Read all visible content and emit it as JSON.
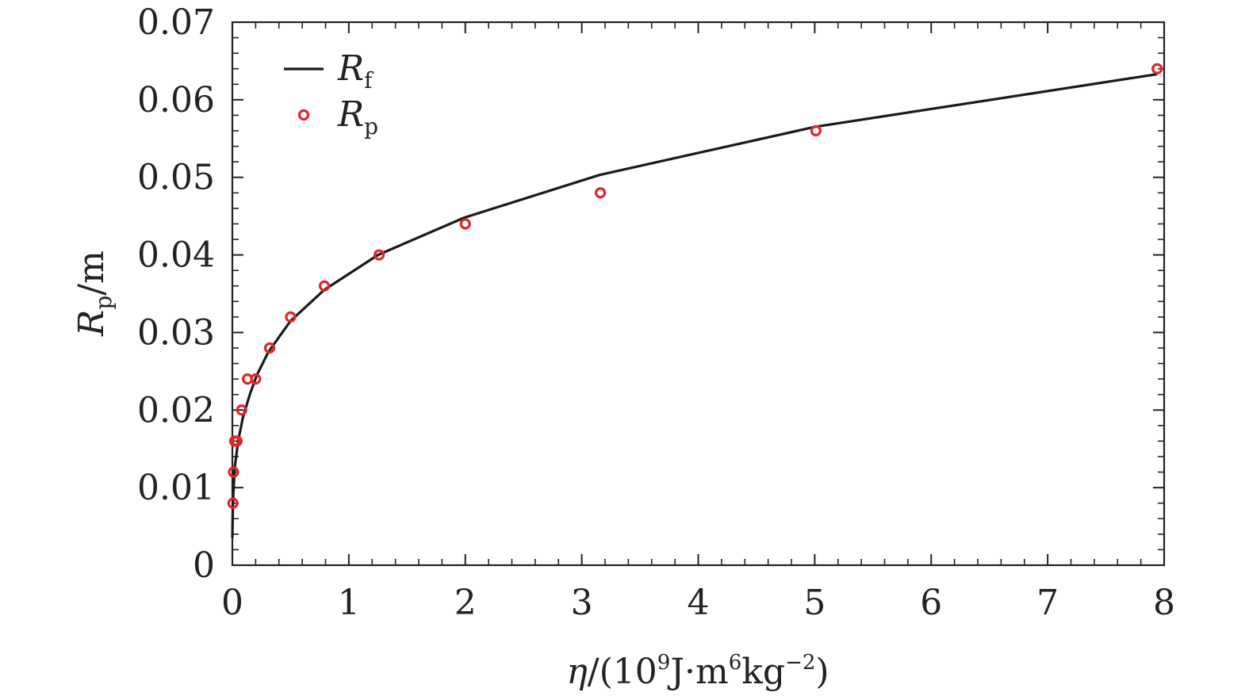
{
  "chart_data": {
    "type": "scatter",
    "xlim": [
      0,
      8
    ],
    "ylim": [
      0,
      0.07
    ],
    "x_ticks": [
      0,
      1,
      2,
      3,
      4,
      5,
      6,
      7,
      8
    ],
    "x_tick_labels": [
      "0",
      "1",
      "2",
      "3",
      "4",
      "5",
      "6",
      "7",
      "8"
    ],
    "x_minor_step": 0.2,
    "y_ticks": [
      0,
      0.01,
      0.02,
      0.03,
      0.04,
      0.05,
      0.06,
      0.07
    ],
    "y_tick_labels": [
      "0",
      "0.01",
      "0.02",
      "0.03",
      "0.04",
      "0.05",
      "0.06",
      "0.07"
    ],
    "y_minor_step": 0.002,
    "xlabel": {
      "symbol": "η",
      "open": "/(10",
      "exp1": "9",
      "mid": "J·m",
      "exp2": "6",
      "tail": "kg",
      "exp3": "−2",
      "close": ")"
    },
    "ylabel": {
      "symbol": "R",
      "sub": "p",
      "unit": "/m"
    },
    "grid": false,
    "legend_position": "top-left",
    "series": [
      {
        "name": "R",
        "name_sub": "f",
        "style": "line",
        "color": "#1a1a1a",
        "x": [
          0.0,
          0.005,
          0.02,
          0.05,
          0.09,
          0.15,
          0.21,
          0.31,
          0.5,
          0.79,
          1.25,
          1.99,
          3.15,
          5.0,
          7.94
        ],
        "y": [
          0.0035,
          0.008,
          0.0125,
          0.016,
          0.019,
          0.022,
          0.0245,
          0.0275,
          0.0315,
          0.0355,
          0.04,
          0.0448,
          0.0503,
          0.0565,
          0.0633
        ]
      },
      {
        "name": "R",
        "name_sub": "p",
        "style": "open-circle",
        "color": "#e0262b",
        "x": [
          0.005,
          0.01,
          0.02,
          0.04,
          0.08,
          0.13,
          0.2,
          0.32,
          0.5,
          0.79,
          1.26,
          2.0,
          3.16,
          5.01,
          7.94
        ],
        "y": [
          0.008,
          0.012,
          0.016,
          0.016,
          0.02,
          0.024,
          0.024,
          0.028,
          0.032,
          0.036,
          0.04,
          0.044,
          0.048,
          0.056,
          0.064
        ]
      }
    ]
  }
}
